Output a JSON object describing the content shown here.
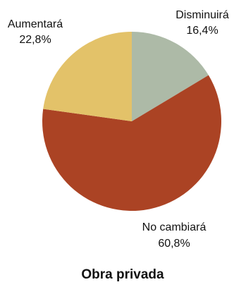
{
  "chart_data": {
    "type": "pie",
    "title": "Obra privada",
    "slices": [
      {
        "label": "Disminuirá",
        "value": 16.4,
        "value_label": "16,4%",
        "color": "#adbaa7"
      },
      {
        "label": "No cambiará",
        "value": 60.8,
        "value_label": "60,8%",
        "color": "#ab4324"
      },
      {
        "label": "Aumentará",
        "value": 22.8,
        "value_label": "22,8%",
        "color": "#e3c269"
      }
    ]
  }
}
